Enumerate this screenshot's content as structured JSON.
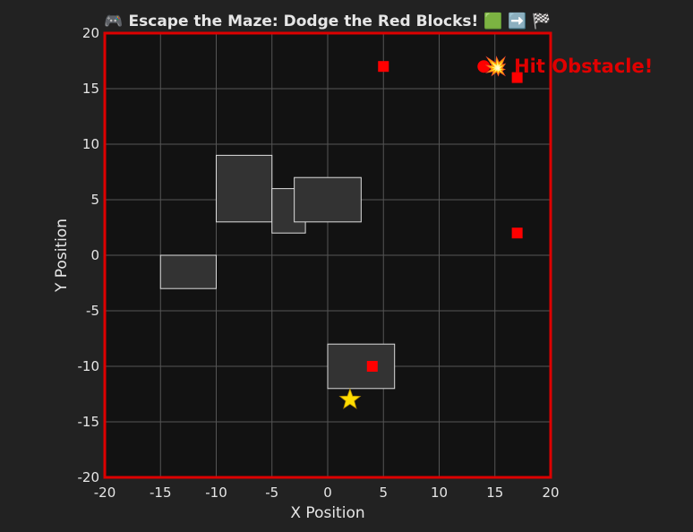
{
  "chart_data": {
    "type": "scatter",
    "title": "🎮 Escape the Maze: Dodge the Red Blocks! 🟩 ➡️ 🏁",
    "xlabel": "X Position",
    "ylabel": "Y Position",
    "xlim": [
      -20,
      20
    ],
    "ylim": [
      -20,
      20
    ],
    "xticks": [
      -20,
      -15,
      -10,
      -5,
      0,
      5,
      10,
      15,
      20
    ],
    "yticks": [
      -20,
      -15,
      -10,
      -5,
      0,
      5,
      10,
      15,
      20
    ],
    "grid": true,
    "walls": [
      {
        "x0": -15,
        "y0": -3,
        "x1": -10,
        "y1": 0
      },
      {
        "x0": -10,
        "y0": 3,
        "x1": -5,
        "y1": 9
      },
      {
        "x0": -5,
        "y0": 2,
        "x1": -2,
        "y1": 6
      },
      {
        "x0": -3,
        "y0": 3,
        "x1": 3,
        "y1": 7
      },
      {
        "x0": 0,
        "y0": -12,
        "x1": 6,
        "y1": -8
      }
    ],
    "obstacles": [
      {
        "x": 5,
        "y": 17
      },
      {
        "x": 17,
        "y": 16
      },
      {
        "x": 17,
        "y": 2
      },
      {
        "x": 4,
        "y": -10
      }
    ],
    "player": {
      "x": 14,
      "y": 17
    },
    "goal": {
      "x": 2,
      "y": -13
    },
    "annotation": {
      "text": "💥 Hit Obstacle!",
      "x": 17,
      "y": 17
    },
    "colors": {
      "background": "#222222",
      "plot_area": "#121212",
      "frame": "#dd0000",
      "wall_fill": "#333333",
      "wall_edge": "#dddddd",
      "obstacle": "#ff0000",
      "player": "#ff0000",
      "goal": "#ffdd00",
      "annotation": "#e00000",
      "grid": "#555555"
    }
  }
}
